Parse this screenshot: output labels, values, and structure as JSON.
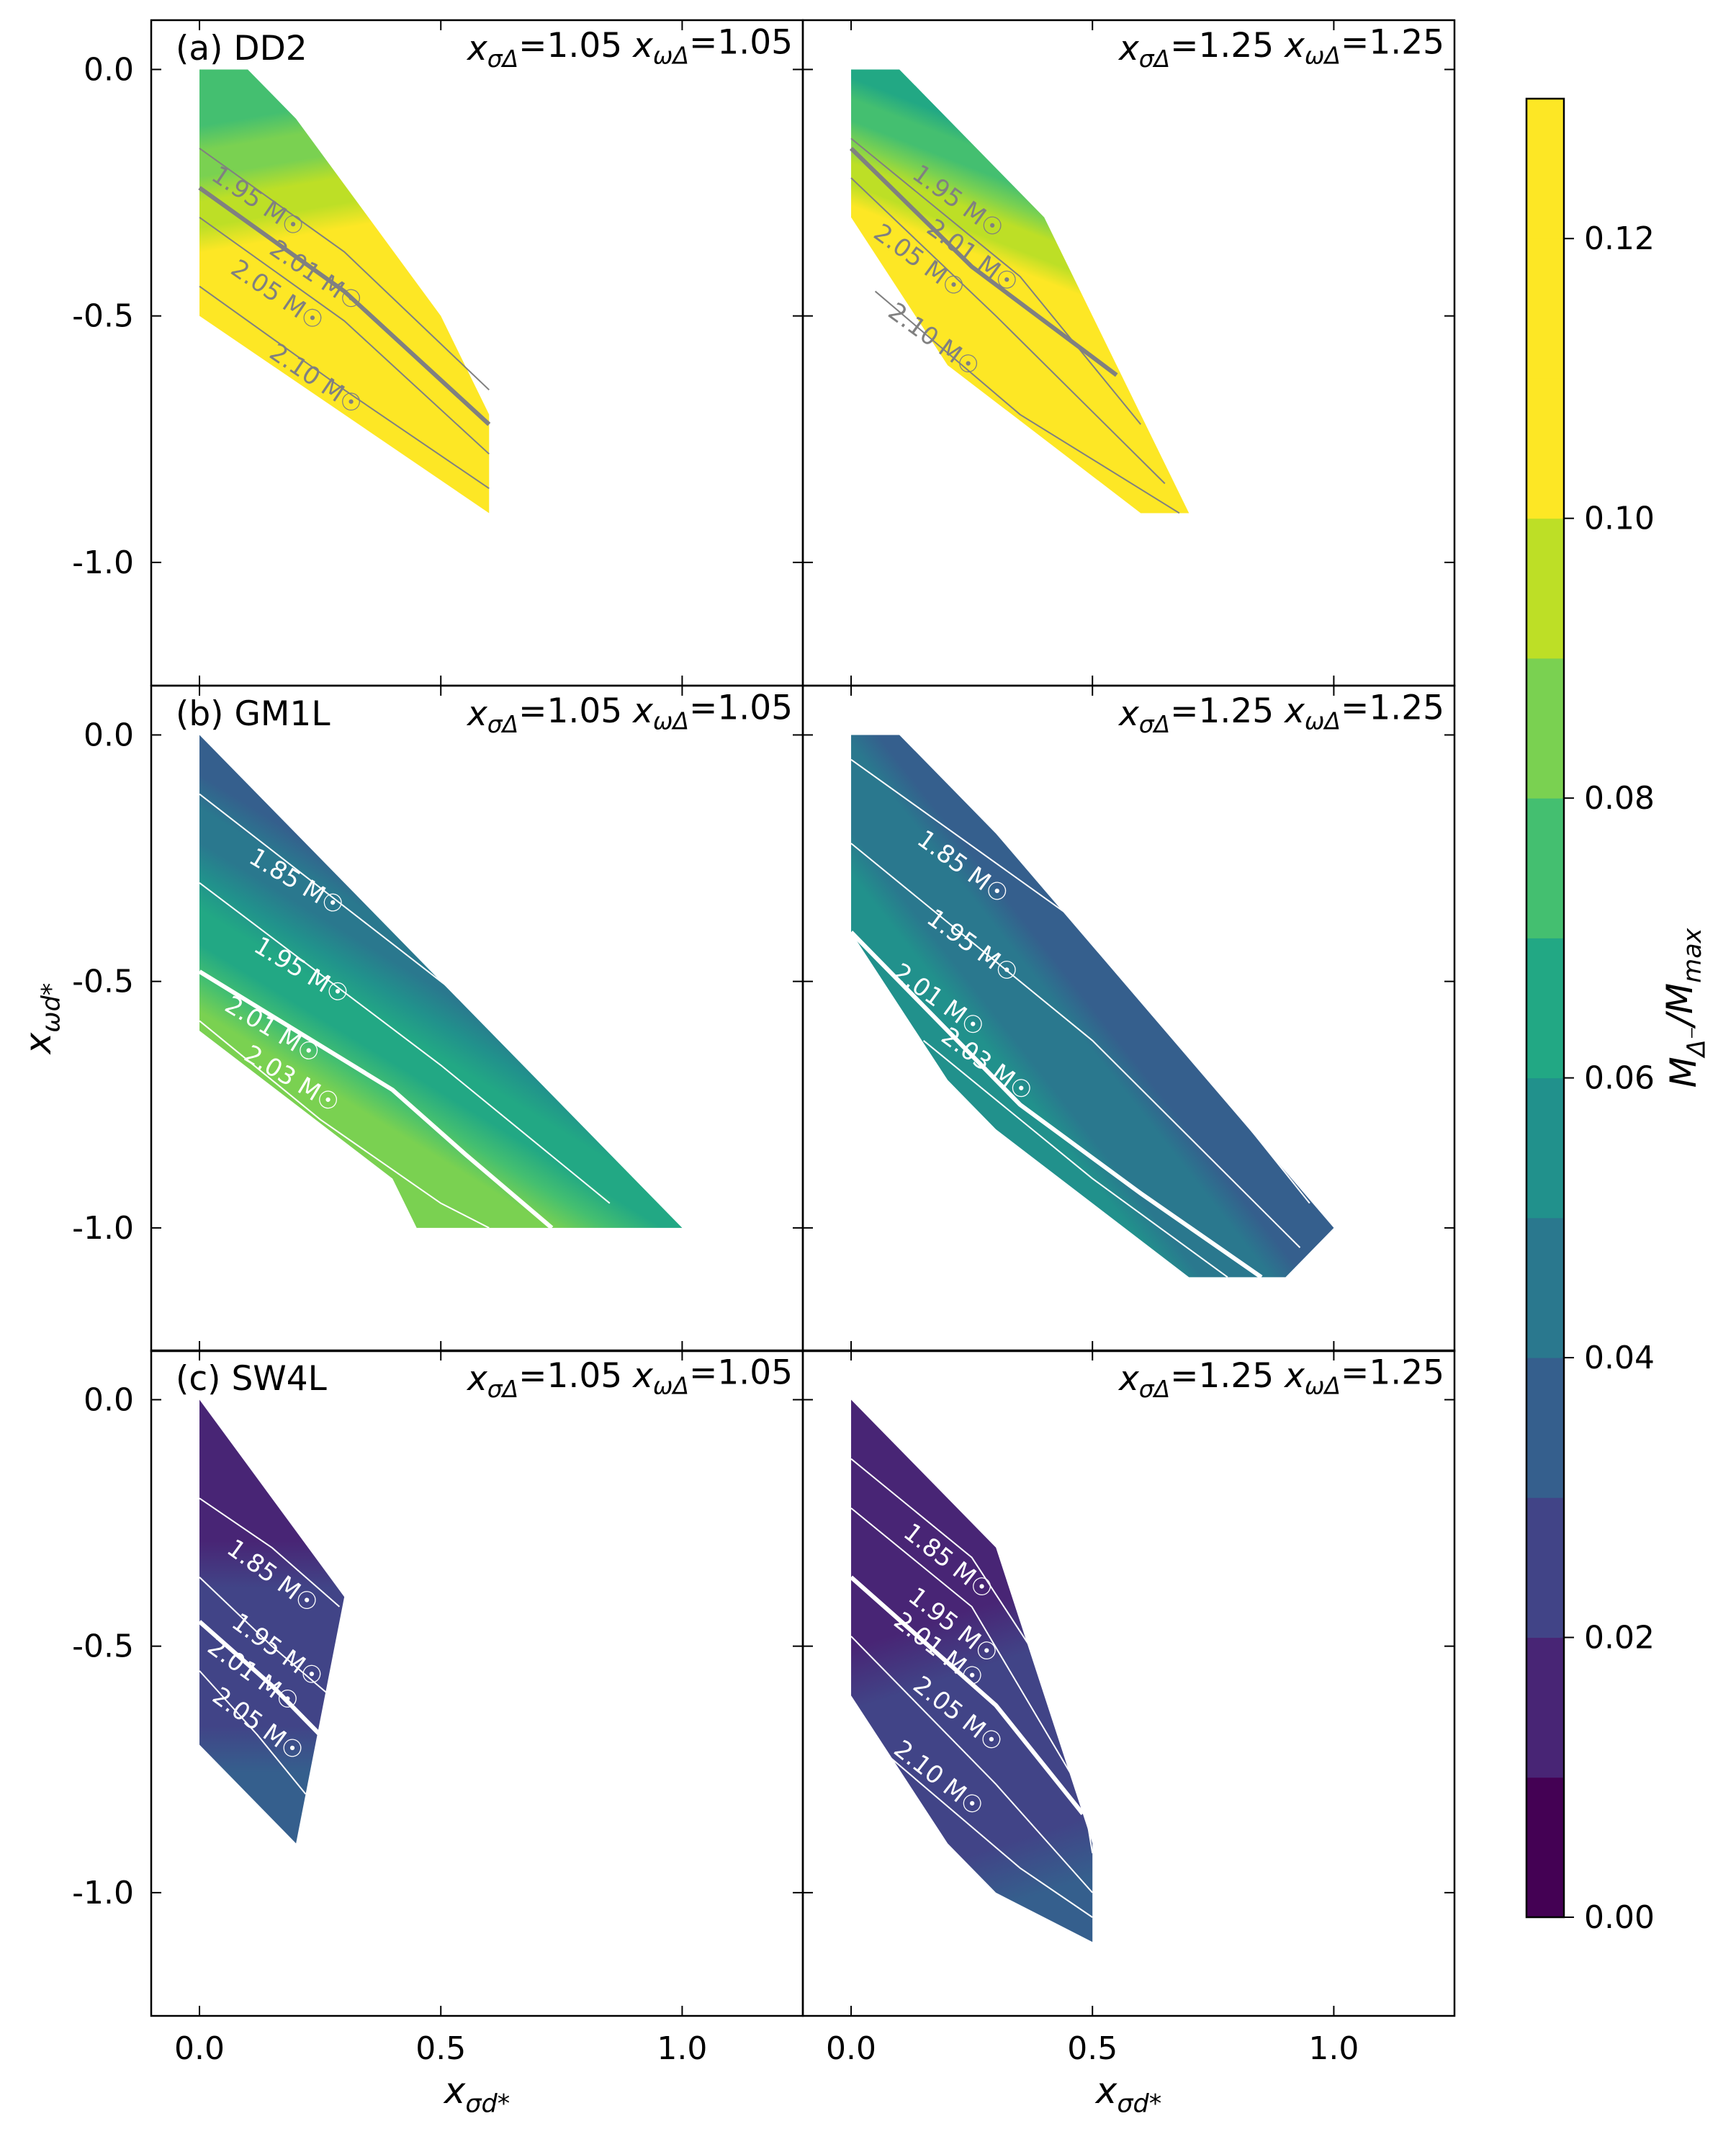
{
  "figure": {
    "colorbar": {
      "label": "M_Δ⁻/M_max",
      "ticks": [
        "0.00",
        "0.02",
        "0.04",
        "0.06",
        "0.08",
        "0.10",
        "0.12"
      ],
      "tick_values": [
        0.0,
        0.02,
        0.04,
        0.06,
        0.08,
        0.1,
        0.12
      ],
      "range": [
        0.0,
        0.13
      ],
      "colors": [
        "#440154",
        "#482575",
        "#414487",
        "#355f8d",
        "#2a788e",
        "#21918c",
        "#22a884",
        "#44bf70",
        "#7ad151",
        "#bddf26",
        "#fde725",
        "#fde725",
        "#fde725"
      ]
    },
    "x_axis": {
      "label": "x_σd*",
      "range": [
        -0.1,
        1.25
      ],
      "ticks": [
        "0.0",
        "0.5",
        "1.0"
      ],
      "tick_values": [
        0.0,
        0.5,
        1.0
      ]
    },
    "y_axis": {
      "label": "x_ωd*",
      "range": [
        -1.25,
        0.1
      ],
      "ticks": [
        "0.0",
        "-0.5",
        "-1.0"
      ],
      "tick_values": [
        0.0,
        -0.5,
        -1.0
      ]
    }
  },
  "chart_data": [
    {
      "type": "contour",
      "panel": "(a) DD2",
      "model": "DD2",
      "params": "x_σΔ=1.05 x_ωΔ=1.05",
      "x_sigma_delta": 1.05,
      "x_omega_delta": 1.05,
      "region": [
        [
          0.0,
          0.0
        ],
        [
          0.1,
          0.0
        ],
        [
          0.2,
          -0.1
        ],
        [
          0.5,
          -0.5
        ],
        [
          0.6,
          -0.7
        ],
        [
          0.6,
          -0.9
        ],
        [
          0.0,
          -0.5
        ]
      ],
      "ratio_range": [
        0.07,
        0.13
      ],
      "ratio_gradient": {
        "from": [
          0.08,
          -0.05
        ],
        "to": [
          0.15,
          -0.45
        ],
        "min": 0.07,
        "max": 0.11
      },
      "contour_color": "#808080",
      "contours": [
        {
          "label": "1.95 M☉",
          "thick": false,
          "points": [
            [
              0.0,
              -0.16
            ],
            [
              0.3,
              -0.37
            ],
            [
              0.6,
              -0.65
            ]
          ],
          "label_at": [
            0.12,
            -0.27
          ],
          "angle": 34
        },
        {
          "label": "2.01 M☉",
          "thick": true,
          "points": [
            [
              0.0,
              -0.24
            ],
            [
              0.3,
              -0.45
            ],
            [
              0.6,
              -0.72
            ]
          ],
          "label_at": [
            0.24,
            -0.42
          ],
          "angle": 34
        },
        {
          "label": "2.05 M☉",
          "thick": false,
          "points": [
            [
              0.0,
              -0.3
            ],
            [
              0.3,
              -0.51
            ],
            [
              0.6,
              -0.78
            ]
          ],
          "label_at": [
            0.16,
            -0.46
          ],
          "angle": 34
        },
        {
          "label": "2.10 M☉",
          "thick": false,
          "points": [
            [
              0.0,
              -0.44
            ],
            [
              0.3,
              -0.65
            ],
            [
              0.6,
              -0.85
            ]
          ],
          "label_at": [
            0.24,
            -0.63
          ],
          "angle": 34
        }
      ]
    },
    {
      "type": "contour",
      "panel": "",
      "model": "DD2",
      "params": "x_σΔ=1.25 x_ωΔ=1.25",
      "x_sigma_delta": 1.25,
      "x_omega_delta": 1.25,
      "region": [
        [
          0.0,
          0.0
        ],
        [
          0.1,
          0.0
        ],
        [
          0.4,
          -0.3
        ],
        [
          0.55,
          -0.6
        ],
        [
          0.7,
          -0.9
        ],
        [
          0.6,
          -0.9
        ],
        [
          0.2,
          -0.6
        ],
        [
          0.0,
          -0.3
        ]
      ],
      "ratio_range": [
        0.06,
        0.13
      ],
      "ratio_gradient": {
        "from": [
          0.2,
          -0.05
        ],
        "to": [
          0.08,
          -0.35
        ],
        "min": 0.06,
        "max": 0.11
      },
      "contour_color": "#808080",
      "contours": [
        {
          "label": "1.95 M☉",
          "thick": false,
          "points": [
            [
              0.0,
              -0.14
            ],
            [
              0.35,
              -0.42
            ],
            [
              0.6,
              -0.72
            ]
          ],
          "label_at": [
            0.22,
            -0.27
          ],
          "angle": 36
        },
        {
          "label": "2.01 M☉",
          "thick": true,
          "points": [
            [
              0.0,
              -0.16
            ],
            [
              0.25,
              -0.4
            ],
            [
              0.55,
              -0.62
            ]
          ],
          "label_at": [
            0.25,
            -0.38
          ],
          "angle": 36
        },
        {
          "label": "2.05 M☉",
          "thick": false,
          "points": [
            [
              0.0,
              -0.22
            ],
            [
              0.3,
              -0.5
            ],
            [
              0.65,
              -0.84
            ]
          ],
          "label_at": [
            0.14,
            -0.39
          ],
          "angle": 36
        },
        {
          "label": "2.10 M☉",
          "thick": false,
          "points": [
            [
              0.05,
              -0.45
            ],
            [
              0.35,
              -0.7
            ],
            [
              0.68,
              -0.9
            ]
          ],
          "label_at": [
            0.17,
            -0.55
          ],
          "angle": 36
        }
      ]
    },
    {
      "type": "contour",
      "panel": "(b) GM1L",
      "model": "GM1L",
      "params": "x_σΔ=1.05 x_ωΔ=1.05",
      "x_sigma_delta": 1.05,
      "x_omega_delta": 1.05,
      "region": [
        [
          0.0,
          0.0
        ],
        [
          1.0,
          -1.0
        ],
        [
          0.45,
          -1.0
        ],
        [
          0.4,
          -0.9
        ],
        [
          0.0,
          -0.6
        ]
      ],
      "ratio_range": [
        0.03,
        0.09
      ],
      "ratio_gradient": {
        "from": [
          0.45,
          -0.35
        ],
        "to": [
          0.2,
          -0.75
        ],
        "min": 0.035,
        "max": 0.088
      },
      "contour_color": "#ffffff",
      "contours": [
        {
          "label": "1.85 M☉",
          "thick": false,
          "points": [
            [
              0.0,
              -0.12
            ],
            [
              0.5,
              -0.5
            ],
            [
              0.9,
              -0.8
            ]
          ],
          "label_at": [
            0.2,
            -0.3
          ],
          "angle": 31
        },
        {
          "label": "1.95 M☉",
          "thick": false,
          "points": [
            [
              0.0,
              -0.3
            ],
            [
              0.5,
              -0.67
            ],
            [
              0.85,
              -0.95
            ]
          ],
          "label_at": [
            0.21,
            -0.48
          ],
          "angle": 31
        },
        {
          "label": "2.01 M☉",
          "thick": true,
          "points": [
            [
              0.0,
              -0.48
            ],
            [
              0.4,
              -0.72
            ],
            [
              0.55,
              -0.85
            ],
            [
              0.73,
              -1.0
            ]
          ],
          "label_at": [
            0.15,
            -0.6
          ],
          "angle": 31
        },
        {
          "label": "2.03 M☉",
          "thick": false,
          "points": [
            [
              0.0,
              -0.58
            ],
            [
              0.25,
              -0.78
            ],
            [
              0.5,
              -0.95
            ],
            [
              0.6,
              -1.0
            ]
          ],
          "label_at": [
            0.19,
            -0.7
          ],
          "angle": 31
        }
      ]
    },
    {
      "type": "contour",
      "panel": "",
      "model": "GM1L",
      "params": "x_σΔ=1.25 x_ωΔ=1.25",
      "x_sigma_delta": 1.25,
      "x_omega_delta": 1.25,
      "region": [
        [
          0.0,
          0.0
        ],
        [
          0.1,
          0.0
        ],
        [
          0.3,
          -0.2
        ],
        [
          1.0,
          -1.0
        ],
        [
          0.9,
          -1.1
        ],
        [
          0.7,
          -1.1
        ],
        [
          0.3,
          -0.8
        ],
        [
          0.2,
          -0.7
        ],
        [
          0.0,
          -0.4
        ]
      ],
      "ratio_range": [
        0.02,
        0.06
      ],
      "ratio_gradient": {
        "from": [
          0.55,
          -0.35
        ],
        "to": [
          0.2,
          -0.62
        ],
        "min": 0.03,
        "max": 0.053
      },
      "contour_color": "#ffffff",
      "contours": [
        {
          "label": "1.85 M☉",
          "thick": false,
          "points": [
            [
              0.0,
              -0.05
            ],
            [
              0.5,
              -0.4
            ],
            [
              0.95,
              -0.95
            ]
          ],
          "label_at": [
            0.23,
            -0.27
          ],
          "angle": 36
        },
        {
          "label": "1.95 M☉",
          "thick": false,
          "points": [
            [
              0.0,
              -0.22
            ],
            [
              0.5,
              -0.62
            ],
            [
              0.93,
              -1.04
            ]
          ],
          "label_at": [
            0.25,
            -0.43
          ],
          "angle": 36
        },
        {
          "label": "2.01 M☉",
          "thick": true,
          "points": [
            [
              0.0,
              -0.4
            ],
            [
              0.35,
              -0.75
            ],
            [
              0.6,
              -0.93
            ],
            [
              0.85,
              -1.1
            ]
          ],
          "label_at": [
            0.18,
            -0.54
          ],
          "angle": 36
        },
        {
          "label": "2.03 M☉",
          "thick": false,
          "points": [
            [
              0.15,
              -0.62
            ],
            [
              0.5,
              -0.9
            ],
            [
              0.78,
              -1.1
            ]
          ],
          "label_at": [
            0.28,
            -0.67
          ],
          "angle": 36
        }
      ]
    },
    {
      "type": "contour",
      "panel": "(c) SW4L",
      "model": "SW4L",
      "params": "x_σΔ=1.05 x_ωΔ=1.05",
      "x_sigma_delta": 1.05,
      "x_omega_delta": 1.05,
      "region": [
        [
          0.0,
          0.0
        ],
        [
          0.3,
          -0.4
        ],
        [
          0.2,
          -0.9
        ],
        [
          0.0,
          -0.7
        ]
      ],
      "ratio_range": [
        0.01,
        0.04
      ],
      "ratio_gradient": {
        "from": [
          0.1,
          -0.1
        ],
        "to": [
          0.1,
          -0.85
        ],
        "min": 0.012,
        "max": 0.034
      },
      "contour_color": "#ffffff",
      "contours": [
        {
          "label": "1.85 M☉",
          "thick": false,
          "points": [
            [
              0.0,
              -0.2
            ],
            [
              0.15,
              -0.3
            ],
            [
              0.29,
              -0.42
            ]
          ],
          "label_at": [
            0.15,
            -0.36
          ],
          "angle": 36
        },
        {
          "label": "1.95 M☉",
          "thick": false,
          "points": [
            [
              0.0,
              -0.36
            ],
            [
              0.15,
              -0.5
            ],
            [
              0.27,
              -0.6
            ]
          ],
          "label_at": [
            0.16,
            -0.51
          ],
          "angle": 36
        },
        {
          "label": "2.01 M☉",
          "thick": true,
          "points": [
            [
              0.0,
              -0.45
            ],
            [
              0.15,
              -0.58
            ],
            [
              0.25,
              -0.68
            ]
          ],
          "label_at": [
            0.11,
            -0.56
          ],
          "angle": 36
        },
        {
          "label": "2.05 M☉",
          "thick": false,
          "points": [
            [
              0.0,
              -0.55
            ],
            [
              0.12,
              -0.68
            ],
            [
              0.22,
              -0.8
            ]
          ],
          "label_at": [
            0.12,
            -0.66
          ],
          "angle": 36
        }
      ]
    },
    {
      "type": "contour",
      "panel": "",
      "model": "SW4L",
      "params": "x_σΔ=1.25 x_ωΔ=1.25",
      "x_sigma_delta": 1.25,
      "x_omega_delta": 1.25,
      "region": [
        [
          0.0,
          0.0
        ],
        [
          0.3,
          -0.3
        ],
        [
          0.5,
          -0.9
        ],
        [
          0.5,
          -1.1
        ],
        [
          0.3,
          -1.0
        ],
        [
          0.2,
          -0.9
        ],
        [
          0.0,
          -0.6
        ]
      ],
      "ratio_range": [
        0.01,
        0.04
      ],
      "ratio_gradient": {
        "from": [
          0.1,
          -0.1
        ],
        "to": [
          0.4,
          -1.0
        ],
        "min": 0.012,
        "max": 0.032
      },
      "contour_color": "#ffffff",
      "contours": [
        {
          "label": "1.85 M☉",
          "thick": false,
          "points": [
            [
              0.0,
              -0.12
            ],
            [
              0.25,
              -0.32
            ],
            [
              0.45,
              -0.62
            ],
            [
              0.5,
              -0.82
            ]
          ],
          "label_at": [
            0.2,
            -0.33
          ],
          "angle": 38
        },
        {
          "label": "1.95 M☉",
          "thick": false,
          "points": [
            [
              0.0,
              -0.22
            ],
            [
              0.25,
              -0.42
            ],
            [
              0.48,
              -0.8
            ],
            [
              0.5,
              -0.92
            ]
          ],
          "label_at": [
            0.21,
            -0.46
          ],
          "angle": 38
        },
        {
          "label": "2.01 M☉",
          "thick": true,
          "points": [
            [
              0.0,
              -0.36
            ],
            [
              0.3,
              -0.62
            ],
            [
              0.48,
              -0.84
            ]
          ],
          "label_at": [
            0.18,
            -0.51
          ],
          "angle": 38
        },
        {
          "label": "2.05 M☉",
          "thick": false,
          "points": [
            [
              0.0,
              -0.48
            ],
            [
              0.3,
              -0.78
            ],
            [
              0.5,
              -1.0
            ]
          ],
          "label_at": [
            0.22,
            -0.64
          ],
          "angle": 38
        },
        {
          "label": "2.10 M☉",
          "thick": false,
          "points": [
            [
              0.05,
              -0.7
            ],
            [
              0.35,
              -0.95
            ],
            [
              0.5,
              -1.05
            ]
          ],
          "label_at": [
            0.18,
            -0.77
          ],
          "angle": 38
        }
      ]
    }
  ]
}
